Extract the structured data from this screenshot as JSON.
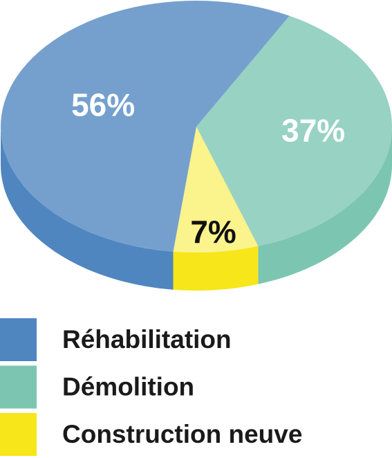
{
  "chart_data": {
    "type": "pie",
    "categories": [
      "Réhabilitation",
      "Démolition",
      "Construction neuve"
    ],
    "values": [
      56,
      37,
      7
    ],
    "value_labels": [
      "56%",
      "37%",
      "7%"
    ],
    "colors": [
      "#4f86c0",
      "#7cc6b1",
      "#f7e619"
    ]
  }
}
